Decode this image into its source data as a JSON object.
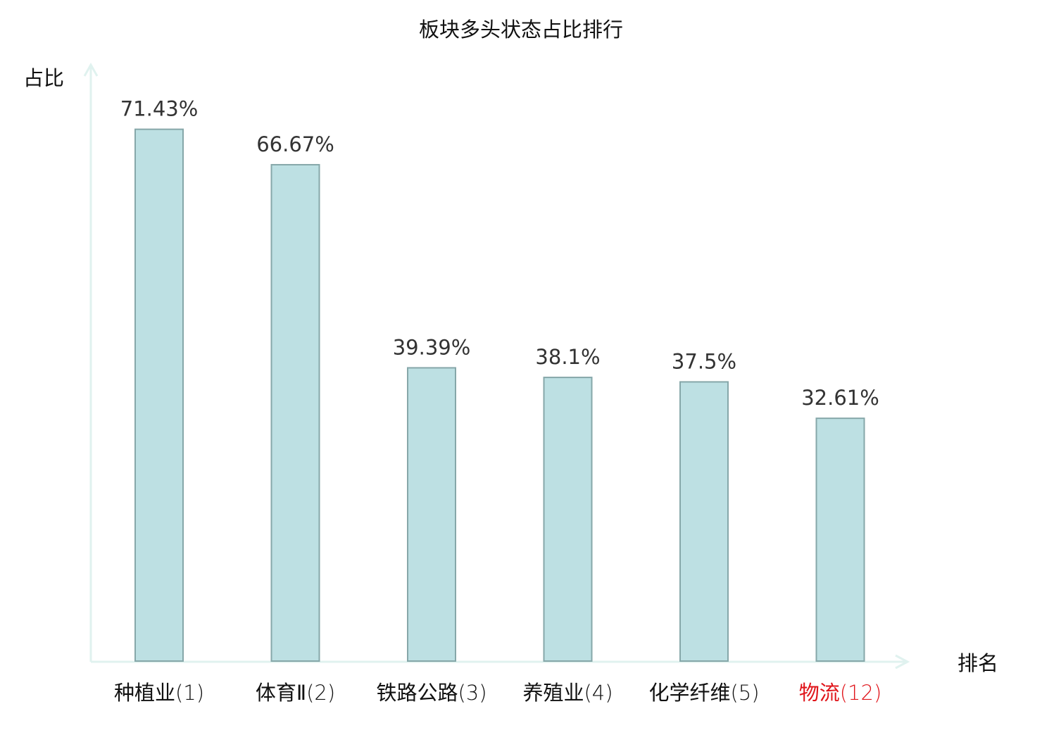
{
  "chart_data": {
    "type": "bar",
    "title": "板块多头状态占比排行",
    "ylabel": "占比",
    "xlabel": "排名",
    "categories": [
      {
        "name": "种植业",
        "rank": "(1)",
        "highlight": false
      },
      {
        "name": "体育Ⅱ",
        "rank": "(2)",
        "highlight": false
      },
      {
        "name": "铁路公路",
        "rank": "(3)",
        "highlight": false
      },
      {
        "name": "养殖业",
        "rank": "(4)",
        "highlight": false
      },
      {
        "name": "化学纤维",
        "rank": "(5)",
        "highlight": false
      },
      {
        "name": "物流",
        "rank": "(12)",
        "highlight": true
      }
    ],
    "values": [
      71.43,
      66.67,
      39.39,
      38.1,
      37.5,
      32.61
    ],
    "value_labels": [
      "71.43%",
      "66.67%",
      "39.39%",
      "38.1%",
      "37.5%",
      "32.61%"
    ],
    "ylim": [
      0,
      80
    ],
    "grid": false,
    "legend": "none",
    "colors": {
      "bar_fill": "#bde0e3",
      "bar_stroke": "#86a7a9",
      "axis": "#e0f2ef",
      "text": "#333333",
      "label": "#111111",
      "highlight": "#e0141a"
    }
  }
}
